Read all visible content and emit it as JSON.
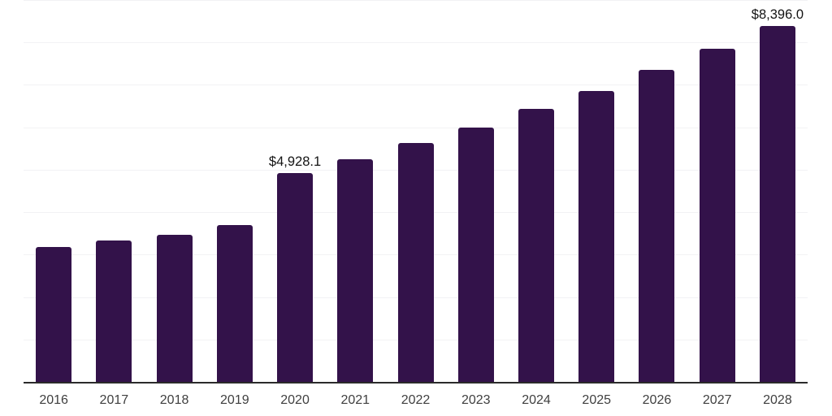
{
  "chart_data": {
    "type": "bar",
    "title": "",
    "xlabel": "",
    "ylabel": "",
    "categories": [
      "2016",
      "2017",
      "2018",
      "2019",
      "2020",
      "2021",
      "2022",
      "2023",
      "2024",
      "2025",
      "2026",
      "2027",
      "2028"
    ],
    "values": [
      3185,
      3330,
      3475,
      3700,
      4928.1,
      5245,
      5630,
      5990,
      6440,
      6860,
      7355,
      7860,
      8396.0
    ],
    "data_labels": {
      "2020": "$4,928.1",
      "2028": "$8,396.0"
    },
    "ylim": [
      0,
      9000
    ],
    "gridline_step": 1000,
    "grid": "horizontal-only",
    "legend": "none",
    "y_axis_tick_labels": "none",
    "colors": {
      "bar": "#33124a",
      "gridline": "#f2f2f4",
      "axis_line": "#2b2b2b",
      "tick_label": "#3f3f3f",
      "data_label": "#141414",
      "background": "#ffffff"
    }
  }
}
